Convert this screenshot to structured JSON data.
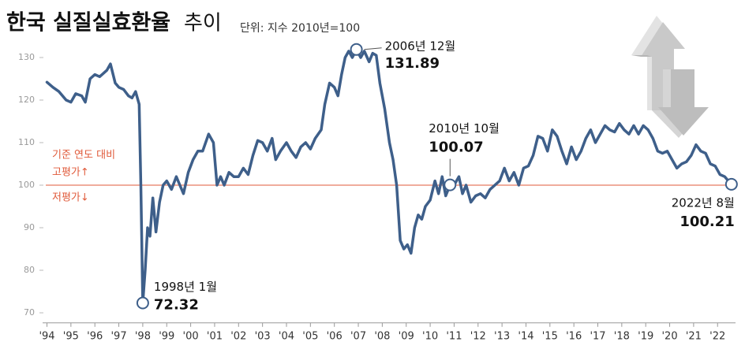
{
  "chart_data": {
    "type": "line",
    "title": "한국 실질실효환율",
    "title_light": "추이",
    "subtitle": "단위: 지수 2010년=100",
    "x": [
      1994.0,
      1994.25,
      1994.5,
      1994.8,
      1995.0,
      1995.2,
      1995.45,
      1995.6,
      1995.8,
      1996.0,
      1996.2,
      1996.5,
      1996.65,
      1996.85,
      1997.0,
      1997.2,
      1997.4,
      1997.55,
      1997.7,
      1997.85,
      1997.92,
      1998.0,
      1998.1,
      1998.2,
      1998.3,
      1998.42,
      1998.55,
      1998.7,
      1998.85,
      1999.0,
      1999.2,
      1999.4,
      1999.55,
      1999.7,
      1999.9,
      2000.1,
      2000.3,
      2000.5,
      2000.75,
      2000.95,
      2001.1,
      2001.25,
      2001.4,
      2001.6,
      2001.8,
      2002.0,
      2002.2,
      2002.4,
      2002.6,
      2002.8,
      2003.0,
      2003.2,
      2003.4,
      2003.55,
      2003.75,
      2004.0,
      2004.2,
      2004.4,
      2004.6,
      2004.8,
      2005.0,
      2005.2,
      2005.45,
      2005.6,
      2005.8,
      2006.0,
      2006.15,
      2006.3,
      2006.45,
      2006.6,
      2006.75,
      2006.92,
      2007.1,
      2007.25,
      2007.45,
      2007.6,
      2007.75,
      2007.9,
      2008.1,
      2008.3,
      2008.45,
      2008.6,
      2008.75,
      2008.9,
      2009.05,
      2009.2,
      2009.35,
      2009.5,
      2009.65,
      2009.8,
      2010.0,
      2010.2,
      2010.35,
      2010.5,
      2010.65,
      2010.83,
      2011.0,
      2011.2,
      2011.35,
      2011.5,
      2011.7,
      2011.9,
      2012.1,
      2012.3,
      2012.5,
      2012.7,
      2012.9,
      2013.1,
      2013.3,
      2013.5,
      2013.7,
      2013.9,
      2014.1,
      2014.3,
      2014.5,
      2014.7,
      2014.9,
      2015.1,
      2015.3,
      2015.5,
      2015.7,
      2015.9,
      2016.1,
      2016.3,
      2016.5,
      2016.7,
      2016.9,
      2017.1,
      2017.3,
      2017.5,
      2017.7,
      2017.9,
      2018.1,
      2018.3,
      2018.5,
      2018.7,
      2018.9,
      2019.1,
      2019.3,
      2019.5,
      2019.7,
      2019.9,
      2020.1,
      2020.3,
      2020.5,
      2020.7,
      2020.9,
      2021.1,
      2021.3,
      2021.5,
      2021.7,
      2021.9,
      2022.1,
      2022.3,
      2022.45,
      2022.58
    ],
    "series": [
      {
        "name": "실질실효환율",
        "color": "#3e5f8a",
        "values": [
          124.2,
          123,
          122,
          120,
          119.5,
          121.5,
          121,
          119.5,
          125,
          126,
          125.5,
          127,
          128.5,
          124,
          123,
          122.5,
          121,
          120.5,
          122,
          119,
          100,
          72.32,
          80,
          90,
          88,
          97,
          89,
          96,
          100,
          101,
          99,
          102,
          100,
          98,
          103,
          106,
          108,
          108,
          112,
          110,
          100,
          102,
          100,
          103,
          102,
          102,
          104,
          102.5,
          107,
          110.5,
          110,
          108,
          111,
          106,
          108,
          110,
          108,
          106.5,
          109,
          110,
          108.5,
          111,
          113,
          119,
          124,
          123,
          121,
          126,
          130,
          131.5,
          130,
          131.89,
          130,
          131.5,
          129,
          131,
          130.5,
          124,
          118,
          110,
          106,
          100,
          87,
          85,
          86,
          84,
          90,
          93,
          92,
          95,
          96.5,
          101,
          98,
          102,
          97.5,
          100.07,
          100,
          102,
          98,
          100,
          96,
          97.5,
          98,
          97,
          99,
          100,
          101,
          104,
          101,
          103,
          100,
          104,
          104.5,
          107,
          111.5,
          111,
          108,
          113,
          111.5,
          108,
          105,
          109,
          106,
          108,
          111,
          113,
          110,
          112,
          114,
          113,
          112.5,
          114.5,
          113,
          112,
          114,
          112,
          114,
          113,
          111,
          108,
          107.5,
          108,
          106,
          104,
          105,
          105.5,
          107,
          109.5,
          108,
          107.5,
          105,
          104.5,
          102.5,
          102,
          101,
          100.21
        ]
      }
    ],
    "xlim": [
      1993.95,
      2022.75
    ],
    "xticks": [
      {
        "value": 1994,
        "label": "'94"
      },
      {
        "value": 1995,
        "label": "'95"
      },
      {
        "value": 1996,
        "label": "'96"
      },
      {
        "value": 1997,
        "label": "'97"
      },
      {
        "value": 1998,
        "label": "'98"
      },
      {
        "value": 1999,
        "label": "'99"
      },
      {
        "value": 2000,
        "label": "'00"
      },
      {
        "value": 2001,
        "label": "'01"
      },
      {
        "value": 2002,
        "label": "'02"
      },
      {
        "value": 2003,
        "label": "'03"
      },
      {
        "value": 2004,
        "label": "'04"
      },
      {
        "value": 2005,
        "label": "'05"
      },
      {
        "value": 2006,
        "label": "'06"
      },
      {
        "value": 2007,
        "label": "'07"
      },
      {
        "value": 2008,
        "label": "'08"
      },
      {
        "value": 2009,
        "label": "'09"
      },
      {
        "value": 2010,
        "label": "'10"
      },
      {
        "value": 2011,
        "label": "'11"
      },
      {
        "value": 2012,
        "label": "'12"
      },
      {
        "value": 2013,
        "label": "'13"
      },
      {
        "value": 2014,
        "label": "'14"
      },
      {
        "value": 2015,
        "label": "'15"
      },
      {
        "value": 2016,
        "label": "'16"
      },
      {
        "value": 2017,
        "label": "'17"
      },
      {
        "value": 2018,
        "label": "'18"
      },
      {
        "value": 2019,
        "label": "'19"
      },
      {
        "value": 2020,
        "label": "'20"
      },
      {
        "value": 2021,
        "label": "'21"
      },
      {
        "value": 2022,
        "label": "'22"
      }
    ],
    "ylim": [
      68,
      133
    ],
    "yticks": [
      70,
      80,
      90,
      100,
      110,
      120,
      130
    ],
    "grid": false,
    "reference": {
      "value": 100,
      "color": "#e05a3a",
      "label_top": "기준 연도 대비",
      "label_above": "고평가↑",
      "label_below": "저평가↓"
    },
    "annotations": [
      {
        "date": "1998년 1월",
        "value_label": "72.32",
        "x": 1998.0,
        "y": 72.32
      },
      {
        "date": "2006년 12월",
        "value_label": "131.89",
        "x": 2006.92,
        "y": 131.89
      },
      {
        "date": "2010년 10월",
        "value_label": "100.07",
        "x": 2010.83,
        "y": 100.07
      },
      {
        "date": "2022년 8월",
        "value_label": "100.21",
        "x": 2022.58,
        "y": 100.21
      }
    ]
  }
}
